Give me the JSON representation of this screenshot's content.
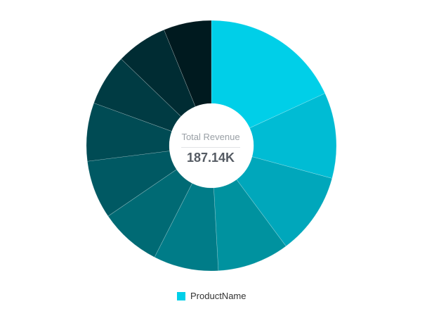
{
  "chart_data": {
    "type": "pie",
    "variant": "donut",
    "center": {
      "title": "Total Revenue",
      "value": "187.14K"
    },
    "legend": {
      "placement": "bottom-center",
      "label": "ProductName"
    },
    "slices": [
      {
        "value": 20.5,
        "color": "#00cfe8"
      },
      {
        "value": 12.5,
        "color": "#00bcd4"
      },
      {
        "value": 12.0,
        "color": "#00a7bb"
      },
      {
        "value": 10.5,
        "color": "#00929f"
      },
      {
        "value": 9.5,
        "color": "#007c88"
      },
      {
        "value": 9.0,
        "color": "#006a74"
      },
      {
        "value": 8.5,
        "color": "#005963"
      },
      {
        "value": 8.5,
        "color": "#004b54"
      },
      {
        "value": 7.5,
        "color": "#003b43"
      },
      {
        "value": 7.5,
        "color": "#002c33"
      },
      {
        "value": 7.0,
        "color": "#001a1f"
      }
    ]
  }
}
